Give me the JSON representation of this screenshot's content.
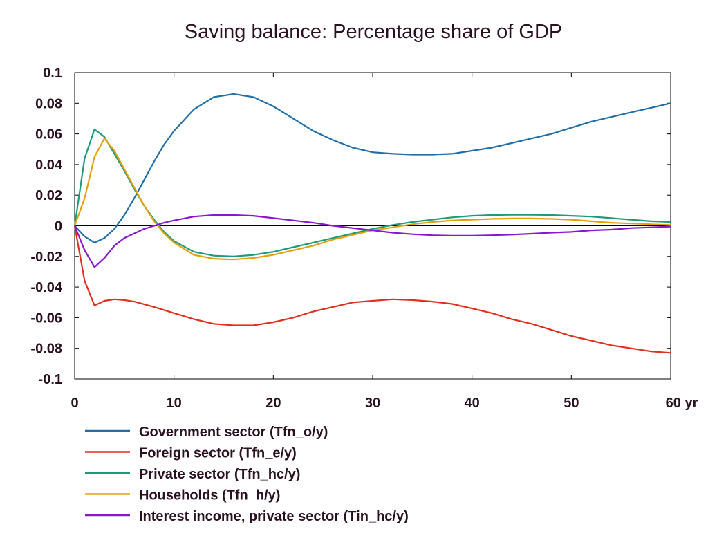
{
  "chart_data": {
    "type": "line",
    "title": "Saving balance: Percentage share of GDP",
    "xlabel": "",
    "ylabel": "",
    "x_unit_label": "yr",
    "xlim": [
      0,
      60
    ],
    "ylim": [
      -0.1,
      0.1
    ],
    "x_ticks": [
      "0",
      "10",
      "20",
      "30",
      "40",
      "50",
      "60 yr"
    ],
    "y_ticks": [
      "0.1",
      "0.08",
      "0.06",
      "0.04",
      "0.02",
      "0",
      "-0.02",
      "-0.04",
      "-0.06",
      "-0.08",
      "-0.1"
    ],
    "legend_position": "bottom-left",
    "grid": false,
    "series": [
      {
        "name": "Government sector (Tfn_o/y)",
        "color": "#1f6fa8",
        "x": [
          0,
          1,
          2,
          3,
          4,
          5,
          6,
          7,
          8,
          9,
          10,
          12,
          14,
          16,
          18,
          20,
          22,
          24,
          26,
          28,
          30,
          32,
          34,
          36,
          38,
          40,
          42,
          44,
          46,
          48,
          50,
          52,
          54,
          56,
          58,
          60
        ],
        "y": [
          0,
          -0.007,
          -0.011,
          -0.008,
          -0.002,
          0.007,
          0.018,
          0.03,
          0.042,
          0.053,
          0.062,
          0.076,
          0.084,
          0.086,
          0.084,
          0.078,
          0.07,
          0.062,
          0.056,
          0.051,
          0.048,
          0.047,
          0.0465,
          0.0465,
          0.047,
          0.049,
          0.051,
          0.054,
          0.057,
          0.06,
          0.064,
          0.068,
          0.071,
          0.074,
          0.077,
          0.08
        ]
      },
      {
        "name": "Foreign sector (Tfn_e/y)",
        "color": "#e0301e",
        "x": [
          0,
          1,
          2,
          3,
          4,
          5,
          6,
          8,
          10,
          12,
          14,
          16,
          18,
          20,
          22,
          24,
          26,
          28,
          30,
          32,
          34,
          36,
          38,
          40,
          42,
          44,
          46,
          48,
          50,
          52,
          54,
          56,
          58,
          60
        ],
        "y": [
          0,
          -0.036,
          -0.052,
          -0.049,
          -0.048,
          -0.0485,
          -0.0495,
          -0.053,
          -0.057,
          -0.061,
          -0.064,
          -0.065,
          -0.065,
          -0.063,
          -0.06,
          -0.056,
          -0.053,
          -0.05,
          -0.049,
          -0.048,
          -0.0485,
          -0.0495,
          -0.051,
          -0.054,
          -0.057,
          -0.061,
          -0.064,
          -0.068,
          -0.072,
          -0.075,
          -0.078,
          -0.08,
          -0.082,
          -0.083
        ]
      },
      {
        "name": "Private sector (Tfn_hc/y)",
        "color": "#1e9a78",
        "x": [
          0,
          1,
          2,
          3,
          4,
          5,
          6,
          7,
          8,
          9,
          10,
          12,
          14,
          16,
          18,
          20,
          22,
          24,
          26,
          28,
          30,
          32,
          34,
          36,
          38,
          40,
          42,
          44,
          46,
          48,
          50,
          52,
          54,
          56,
          58,
          60
        ],
        "y": [
          0,
          0.044,
          0.063,
          0.058,
          0.047,
          0.036,
          0.024,
          0.013,
          0.004,
          -0.004,
          -0.01,
          -0.017,
          -0.0195,
          -0.02,
          -0.019,
          -0.017,
          -0.014,
          -0.011,
          -0.008,
          -0.005,
          -0.002,
          0.0005,
          0.0025,
          0.004,
          0.0055,
          0.0065,
          0.007,
          0.0072,
          0.0072,
          0.007,
          0.0065,
          0.006,
          0.005,
          0.004,
          0.003,
          0.0025
        ]
      },
      {
        "name": "Households (Tfn_h/y)",
        "color": "#e6a00a",
        "x": [
          0,
          1,
          2,
          3,
          4,
          5,
          6,
          7,
          8,
          9,
          10,
          12,
          14,
          16,
          18,
          20,
          22,
          24,
          26,
          28,
          30,
          32,
          34,
          36,
          38,
          40,
          42,
          44,
          46,
          48,
          50,
          52,
          54,
          56,
          58,
          60
        ],
        "y": [
          0,
          0.018,
          0.045,
          0.057,
          0.049,
          0.037,
          0.025,
          0.013,
          0.003,
          -0.005,
          -0.011,
          -0.019,
          -0.0215,
          -0.022,
          -0.021,
          -0.019,
          -0.016,
          -0.013,
          -0.009,
          -0.006,
          -0.003,
          -0.001,
          0.001,
          0.0025,
          0.0035,
          0.004,
          0.0045,
          0.0048,
          0.0048,
          0.0045,
          0.004,
          0.003,
          0.002,
          0.0015,
          0.001,
          0.0005
        ]
      },
      {
        "name": "Interest income, private sector (Tin_hc/y)",
        "color": "#8a16d0",
        "x": [
          0,
          1,
          2,
          3,
          4,
          5,
          6,
          7,
          8,
          9,
          10,
          12,
          14,
          16,
          18,
          20,
          22,
          24,
          26,
          28,
          30,
          32,
          34,
          36,
          38,
          40,
          42,
          44,
          46,
          48,
          50,
          52,
          54,
          56,
          58,
          60
        ],
        "y": [
          0,
          -0.016,
          -0.027,
          -0.021,
          -0.013,
          -0.008,
          -0.005,
          -0.002,
          0.0,
          0.002,
          0.0035,
          0.006,
          0.007,
          0.007,
          0.0065,
          0.005,
          0.0035,
          0.002,
          0.0,
          -0.0015,
          -0.003,
          -0.0045,
          -0.0055,
          -0.0062,
          -0.0065,
          -0.0065,
          -0.0062,
          -0.0058,
          -0.0052,
          -0.0045,
          -0.004,
          -0.003,
          -0.0025,
          -0.0015,
          -0.001,
          -0.0005
        ]
      }
    ]
  }
}
